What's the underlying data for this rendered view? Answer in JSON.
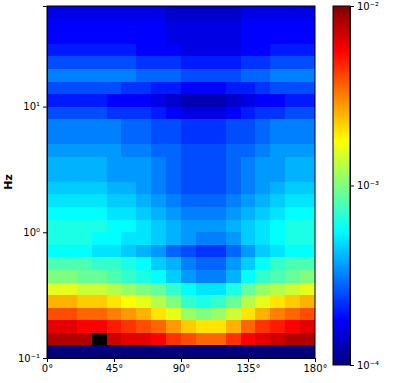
{
  "chart_data": {
    "type": "heatmap",
    "y_label": "Hz",
    "log": "y",
    "xlim": [
      0,
      180
    ],
    "ylim": [
      0.1,
      63.1
    ],
    "xticks": [
      {
        "value": 0,
        "label": "0°"
      },
      {
        "value": 45,
        "label": "45°"
      },
      {
        "value": 90,
        "label": "90°"
      },
      {
        "value": 135,
        "label": "135°"
      },
      {
        "value": 180,
        "label": "180°"
      }
    ],
    "yticks": [
      {
        "value": 0.1,
        "label": "10⁻¹"
      },
      {
        "value": 1,
        "label": "10⁰"
      },
      {
        "value": 10,
        "label": "10¹"
      }
    ],
    "x_bins": [
      0,
      10,
      20,
      30,
      40,
      50,
      60,
      70,
      80,
      90,
      100,
      110,
      120,
      130,
      140,
      150,
      160,
      170,
      180
    ],
    "y_bins": [
      0.1,
      0.126,
      0.158,
      0.2,
      0.251,
      0.316,
      0.398,
      0.501,
      0.631,
      0.794,
      1,
      1.26,
      1.58,
      2,
      2.51,
      3.16,
      3.98,
      5.01,
      6.31,
      7.94,
      10,
      12.6,
      15.8,
      20,
      25.1,
      31.6,
      39.8,
      50.1,
      63.1
    ],
    "cells": [
      [
        0.0001,
        0.0001,
        0.0001,
        0.0001,
        0.0001,
        0.0001,
        0.0001,
        0.0001,
        0.0001,
        0.0001,
        0.0001,
        0.0001,
        0.0001,
        0.0001,
        0.0001,
        0.0001,
        0.0001,
        0.0001
      ],
      [
        0.00794,
        0.00794,
        0.00794,
        null,
        0.00708,
        0.00631,
        0.00631,
        0.00562,
        0.00447,
        0.00398,
        0.00355,
        0.00355,
        0.00447,
        0.00562,
        0.00631,
        0.00708,
        0.00794,
        0.00794
      ],
      [
        0.00631,
        0.00631,
        0.00562,
        0.00562,
        0.00501,
        0.00447,
        0.00398,
        0.00355,
        0.00282,
        0.00224,
        0.002,
        0.002,
        0.00251,
        0.00355,
        0.00447,
        0.00501,
        0.00562,
        0.00631
      ],
      [
        0.00398,
        0.00398,
        0.00355,
        0.00355,
        0.00316,
        0.00282,
        0.00251,
        0.002,
        0.00158,
        0.00112,
        0.001,
        0.00112,
        0.00141,
        0.002,
        0.00251,
        0.00316,
        0.00355,
        0.00398
      ],
      [
        0.00251,
        0.00251,
        0.00224,
        0.00224,
        0.002,
        0.00178,
        0.00158,
        0.00126,
        0.001,
        0.000708,
        0.000631,
        0.000708,
        0.000891,
        0.00126,
        0.00158,
        0.002,
        0.00224,
        0.00251
      ],
      [
        0.00158,
        0.00158,
        0.00141,
        0.00141,
        0.00126,
        0.00112,
        0.001,
        0.000891,
        0.000708,
        0.000562,
        0.000501,
        0.000501,
        0.000631,
        0.000891,
        0.00112,
        0.00126,
        0.00141,
        0.00158
      ],
      [
        0.001,
        0.001,
        0.000891,
        0.000891,
        0.000794,
        0.000708,
        0.000631,
        0.000562,
        0.000447,
        0.000355,
        0.000316,
        0.000316,
        0.000398,
        0.000562,
        0.000708,
        0.000794,
        0.000891,
        0.001
      ],
      [
        0.000794,
        0.000794,
        0.000794,
        0.000708,
        0.000708,
        0.000631,
        0.000562,
        0.000447,
        0.000398,
        0.000316,
        0.000282,
        0.000282,
        0.000355,
        0.000447,
        0.000562,
        0.000708,
        0.000794,
        0.000794
      ],
      [
        0.000562,
        0.000562,
        0.000562,
        0.000501,
        0.000501,
        0.000447,
        0.000398,
        0.000355,
        0.000282,
        0.000251,
        0.000224,
        0.000224,
        0.000282,
        0.000355,
        0.000447,
        0.000501,
        0.000562,
        0.000562
      ],
      [
        0.000631,
        0.000631,
        0.000631,
        0.000562,
        0.000562,
        0.000501,
        0.000501,
        0.000447,
        0.000398,
        0.000355,
        0.000316,
        0.000316,
        0.000355,
        0.000447,
        0.000501,
        0.000562,
        0.000631,
        0.000631
      ],
      [
        0.000631,
        0.000631,
        0.000631,
        0.000631,
        0.000562,
        0.000562,
        0.000501,
        0.000447,
        0.000398,
        0.000355,
        0.000355,
        0.000355,
        0.000398,
        0.000447,
        0.000501,
        0.000562,
        0.000631,
        0.000631
      ],
      [
        0.000562,
        0.000562,
        0.000562,
        0.000562,
        0.000501,
        0.000501,
        0.000447,
        0.000398,
        0.000355,
        0.000316,
        0.000316,
        0.000316,
        0.000355,
        0.000398,
        0.000447,
        0.000501,
        0.000562,
        0.000562
      ],
      [
        0.000501,
        0.000501,
        0.000501,
        0.000501,
        0.000447,
        0.000447,
        0.000398,
        0.000355,
        0.000316,
        0.000282,
        0.000282,
        0.000282,
        0.000316,
        0.000355,
        0.000398,
        0.000447,
        0.000501,
        0.000501
      ],
      [
        0.000447,
        0.000447,
        0.000447,
        0.000447,
        0.000398,
        0.000398,
        0.000355,
        0.000316,
        0.000282,
        0.000251,
        0.000251,
        0.000251,
        0.000282,
        0.000316,
        0.000355,
        0.000398,
        0.000447,
        0.000447
      ],
      [
        0.000398,
        0.000398,
        0.000398,
        0.000398,
        0.000355,
        0.000355,
        0.000355,
        0.000316,
        0.000282,
        0.000251,
        0.000251,
        0.000251,
        0.000282,
        0.000316,
        0.000355,
        0.000355,
        0.000398,
        0.000398
      ],
      [
        0.000398,
        0.000398,
        0.000398,
        0.000398,
        0.000355,
        0.000355,
        0.000355,
        0.000316,
        0.000282,
        0.000251,
        0.000251,
        0.000251,
        0.000282,
        0.000316,
        0.000355,
        0.000355,
        0.000398,
        0.000398
      ],
      [
        0.000355,
        0.000355,
        0.000355,
        0.000355,
        0.000355,
        0.000316,
        0.000316,
        0.000282,
        0.000282,
        0.000251,
        0.000251,
        0.000251,
        0.000282,
        0.000282,
        0.000316,
        0.000355,
        0.000355,
        0.000355
      ],
      [
        0.000316,
        0.000316,
        0.000316,
        0.000316,
        0.000316,
        0.000282,
        0.000282,
        0.000251,
        0.000251,
        0.000224,
        0.000224,
        0.000224,
        0.000251,
        0.000251,
        0.000282,
        0.000316,
        0.000316,
        0.000316
      ],
      [
        0.000316,
        0.000316,
        0.000316,
        0.000316,
        0.000316,
        0.000282,
        0.000282,
        0.000251,
        0.000251,
        0.000224,
        0.000224,
        0.000224,
        0.000251,
        0.000251,
        0.000282,
        0.000316,
        0.000316,
        0.000316
      ],
      [
        0.000251,
        0.000251,
        0.000251,
        0.000251,
        0.000224,
        0.000224,
        0.000224,
        0.0002,
        0.000178,
        0.000158,
        0.000158,
        0.000158,
        0.000178,
        0.0002,
        0.000224,
        0.000224,
        0.000251,
        0.000251
      ],
      [
        0.0002,
        0.0002,
        0.0002,
        0.0002,
        0.000178,
        0.000178,
        0.000178,
        0.000158,
        0.000141,
        0.000126,
        0.000126,
        0.000126,
        0.000141,
        0.000158,
        0.000178,
        0.000178,
        0.0002,
        0.0002
      ],
      [
        0.000251,
        0.000251,
        0.000251,
        0.000251,
        0.000251,
        0.000224,
        0.000224,
        0.0002,
        0.0002,
        0.000178,
        0.000178,
        0.000178,
        0.0002,
        0.0002,
        0.000224,
        0.000251,
        0.000251,
        0.000251
      ],
      [
        0.000316,
        0.000316,
        0.000316,
        0.000316,
        0.000316,
        0.000316,
        0.000282,
        0.000282,
        0.000282,
        0.000251,
        0.000251,
        0.000251,
        0.000251,
        0.000282,
        0.000282,
        0.000316,
        0.000316,
        0.000316
      ],
      [
        0.000251,
        0.000251,
        0.000251,
        0.000251,
        0.000251,
        0.000251,
        0.000224,
        0.000224,
        0.000224,
        0.0002,
        0.0002,
        0.0002,
        0.0002,
        0.000224,
        0.000224,
        0.000251,
        0.000251,
        0.000251
      ],
      [
        0.0002,
        0.0002,
        0.0002,
        0.0002,
        0.0002,
        0.0002,
        0.000178,
        0.000178,
        0.000178,
        0.000158,
        0.000158,
        0.000158,
        0.000158,
        0.000178,
        0.000178,
        0.0002,
        0.0002,
        0.0002
      ],
      [
        0.000178,
        0.000178,
        0.000178,
        0.000178,
        0.000178,
        0.000178,
        0.000178,
        0.000178,
        0.000158,
        0.000158,
        0.000158,
        0.000158,
        0.000158,
        0.000178,
        0.000178,
        0.000178,
        0.000178,
        0.000178
      ],
      [
        0.000178,
        0.000178,
        0.000178,
        0.000178,
        0.000178,
        0.000178,
        0.000178,
        0.000178,
        0.000158,
        0.000158,
        0.000158,
        0.000158,
        0.000158,
        0.000178,
        0.000178,
        0.000178,
        0.000178,
        0.000178
      ],
      [
        0.000158,
        0.000158,
        0.000158,
        0.000158,
        0.000158,
        0.000158,
        0.000158,
        0.000158,
        0.000141,
        0.000141,
        0.000141,
        0.000141,
        0.000141,
        0.000158,
        0.000158,
        0.000158,
        0.000158,
        0.000158
      ]
    ],
    "colorbar": {
      "log": true,
      "range": [
        0.0001,
        0.01
      ],
      "ticks": [
        {
          "value": 0.0001,
          "label": "10⁻⁴"
        },
        {
          "value": 0.001,
          "label": "10⁻³"
        },
        {
          "value": 0.01,
          "label": "10⁻²"
        }
      ]
    }
  }
}
